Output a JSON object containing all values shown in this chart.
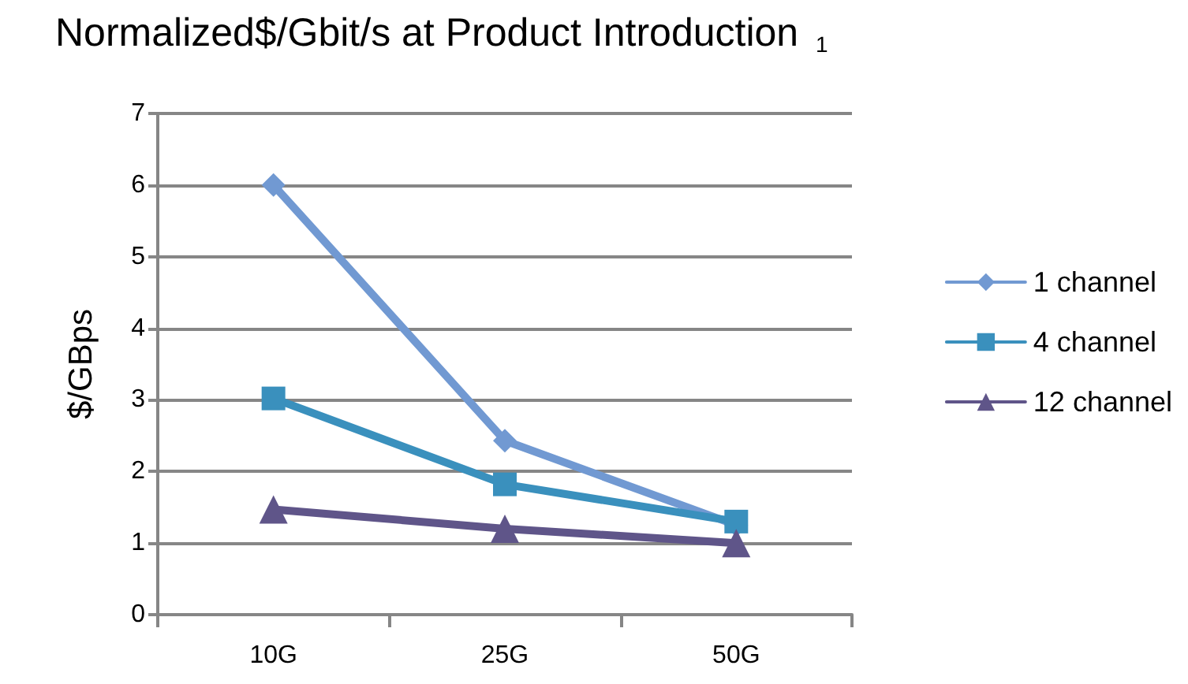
{
  "chart_data": {
    "type": "line",
    "title": "Normalized$/Gbit/s at Product Introduction $_{1}$",
    "ylabel": "$/GBps",
    "categories": [
      "10G",
      "25G",
      "50G"
    ],
    "series": [
      {
        "name": "1 channel",
        "color": "#7199d2",
        "marker": "diamond",
        "values": [
          6.0,
          2.43,
          1.25
        ]
      },
      {
        "name": "4 channel",
        "color": "#3a90bd",
        "marker": "square",
        "values": [
          3.02,
          1.82,
          1.3
        ]
      },
      {
        "name": "12 channel",
        "color": "#5f5589",
        "marker": "triangle",
        "values": [
          1.47,
          1.2,
          1.0
        ]
      }
    ],
    "ylim": [
      0,
      7
    ],
    "yticks": [
      0,
      1,
      2,
      3,
      4,
      5,
      6,
      7
    ],
    "grid": "y",
    "legend": "right",
    "line_style": "solid"
  }
}
